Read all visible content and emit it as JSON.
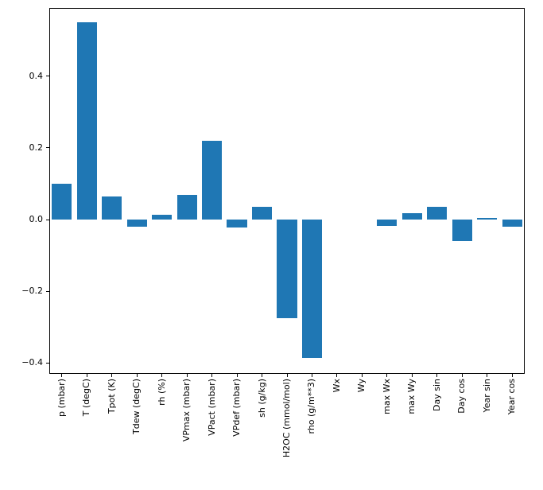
{
  "chart_data": {
    "type": "bar",
    "title": "",
    "xlabel": "",
    "ylabel": "",
    "categories": [
      "p (mbar)",
      "T (degC)",
      "Tpot (K)",
      "Tdew (degC)",
      "rh (%)",
      "VPmax (mbar)",
      "VPact (mbar)",
      "VPdef (mbar)",
      "sh (g/kg)",
      "H2OC (mmol/mol)",
      "rho (g/m**3)",
      "Wx",
      "Wy",
      "max Wx",
      "max Wy",
      "Day sin",
      "Day cos",
      "Year sin",
      "Year cos"
    ],
    "values": [
      0.1,
      0.55,
      0.065,
      -0.02,
      0.013,
      0.068,
      0.22,
      -0.022,
      0.035,
      -0.275,
      -0.385,
      0.0,
      0.0,
      -0.018,
      0.017,
      0.035,
      -0.06,
      0.004,
      -0.02
    ],
    "ylim": [
      -0.43,
      0.59
    ],
    "yticks": [
      -0.4,
      -0.2,
      0.0,
      0.2,
      0.4
    ],
    "ytick_labels": [
      "−0.4",
      "−0.2",
      "0.0",
      "0.2",
      "0.4"
    ],
    "bar_color": "#1f77b4",
    "grid": false,
    "legend_position": "none"
  }
}
